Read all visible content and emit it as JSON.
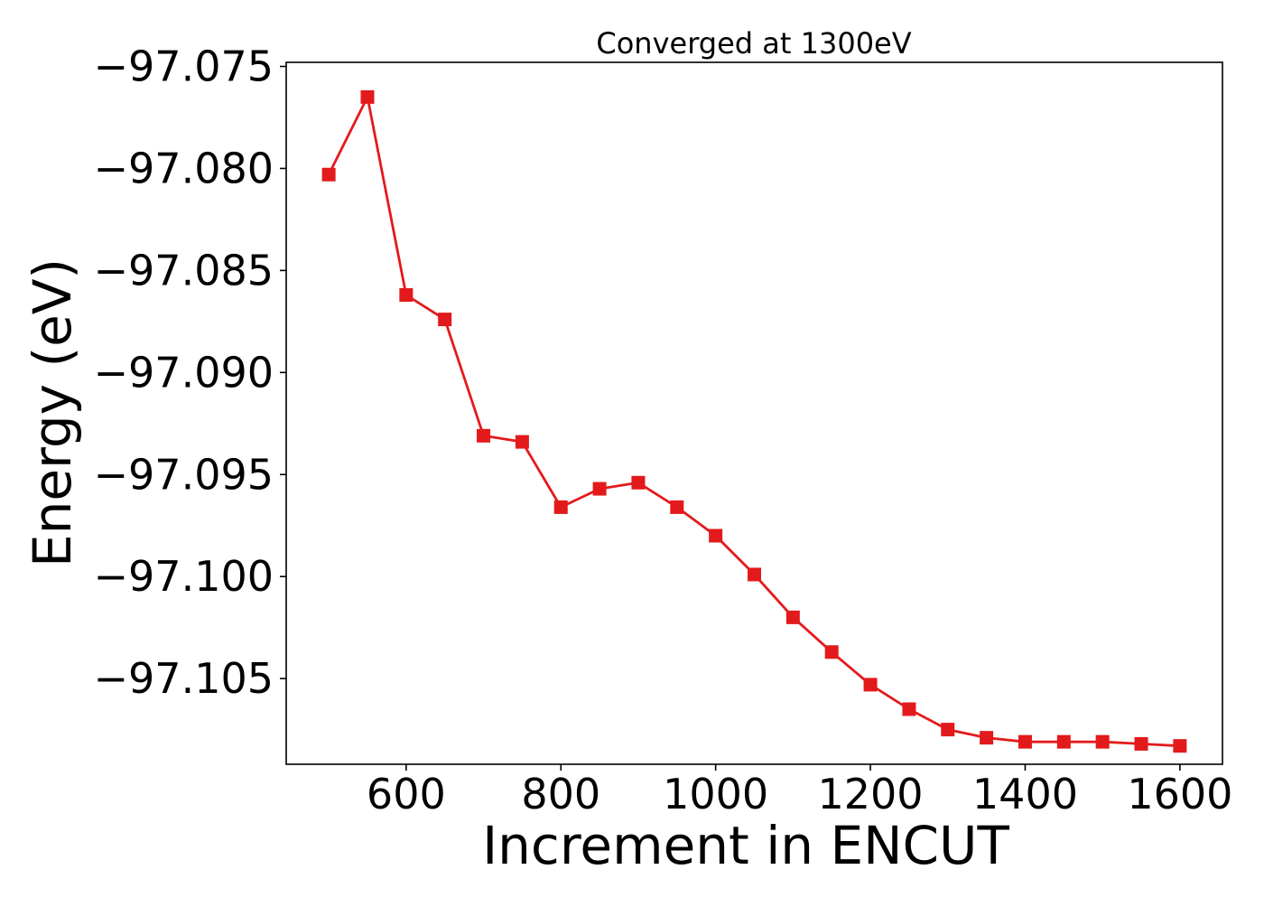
{
  "chart_data": {
    "type": "line",
    "title": "Converged at 1300eV",
    "xlabel": "Increment in ENCUT",
    "ylabel": "Energy (eV)",
    "xlim": [
      445,
      1655
    ],
    "ylim": [
      -97.1092,
      -97.0748
    ],
    "x_ticks": [
      600,
      800,
      1000,
      1200,
      1400,
      1600
    ],
    "y_ticks": [
      -97.075,
      -97.08,
      -97.085,
      -97.09,
      -97.095,
      -97.1,
      -97.105
    ],
    "x_tick_labels": [
      "600",
      "800",
      "1000",
      "1200",
      "1400",
      "1600"
    ],
    "y_tick_labels": [
      "−97.075",
      "−97.080",
      "−97.085",
      "−97.090",
      "−97.095",
      "−97.100",
      "−97.105"
    ],
    "grid": false,
    "series": [
      {
        "color": "#e31a1c",
        "marker": "square",
        "x": [
          500,
          550,
          600,
          650,
          700,
          750,
          800,
          850,
          900,
          950,
          1000,
          1050,
          1100,
          1150,
          1200,
          1250,
          1300,
          1350,
          1400,
          1450,
          1500,
          1550,
          1600
        ],
        "y": [
          -97.0803,
          -97.0765,
          -97.0862,
          -97.0874,
          -97.0931,
          -97.0934,
          -97.0966,
          -97.0957,
          -97.0954,
          -97.0966,
          -97.098,
          -97.0999,
          -97.102,
          -97.1037,
          -97.1053,
          -97.1065,
          -97.1075,
          -97.1079,
          -97.1081,
          -97.1081,
          -97.1081,
          -97.1082,
          -97.1083
        ]
      }
    ]
  }
}
